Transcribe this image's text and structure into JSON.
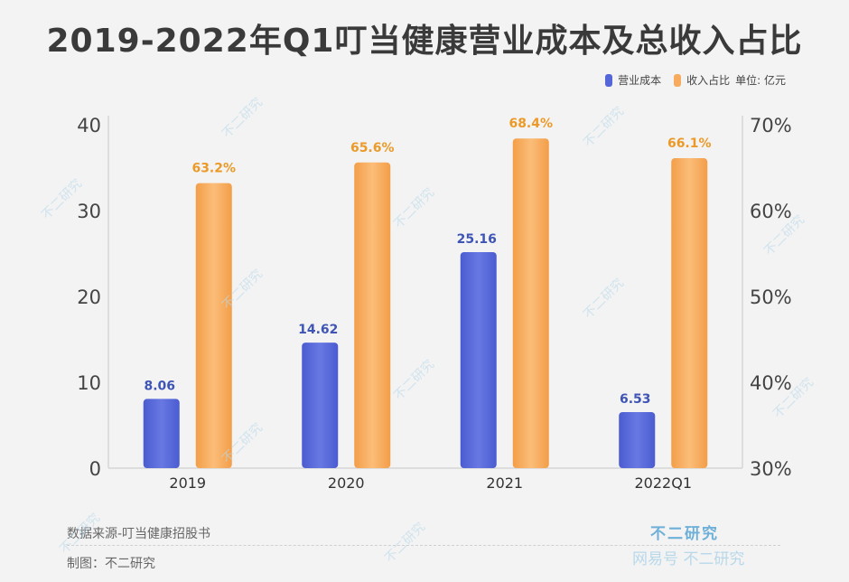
{
  "title": "2019-2022年Q1叮当健康营业成本及总收入占比",
  "legend": {
    "series1": "营业成本",
    "series2": "收入占比",
    "unit": "单位: 亿元"
  },
  "colors": {
    "cost": "#5566d9",
    "ratio": "#f7ab5e",
    "costLabel": "#3f55b5",
    "ratioLabel": "#eb9a28"
  },
  "chart_data": {
    "type": "bar",
    "categories": [
      "2019",
      "2020",
      "2021",
      "2022Q1"
    ],
    "series": [
      {
        "name": "营业成本",
        "axis": "left",
        "values": [
          8.06,
          14.62,
          25.16,
          6.53
        ],
        "labels": [
          "8.06",
          "14.62",
          "25.16",
          "6.53"
        ]
      },
      {
        "name": "收入占比",
        "axis": "right",
        "values": [
          63.2,
          65.6,
          68.4,
          66.1
        ],
        "labels": [
          "63.2%",
          "65.6%",
          "68.4%",
          "66.1%"
        ]
      }
    ],
    "y_left": {
      "min": 0,
      "max": 40,
      "ticks": [
        "0",
        "10",
        "20",
        "30",
        "40"
      ]
    },
    "y_right": {
      "min": 30,
      "max": 70,
      "ticks": [
        "30%",
        "40%",
        "50%",
        "60%",
        "70%"
      ]
    }
  },
  "footer": {
    "source": "数据来源-叮当健康招股书",
    "made_by": "制图：不二研究",
    "brand": "不二研究",
    "watermark": "网易号 不二研究"
  },
  "watermark_text": "不二研究"
}
